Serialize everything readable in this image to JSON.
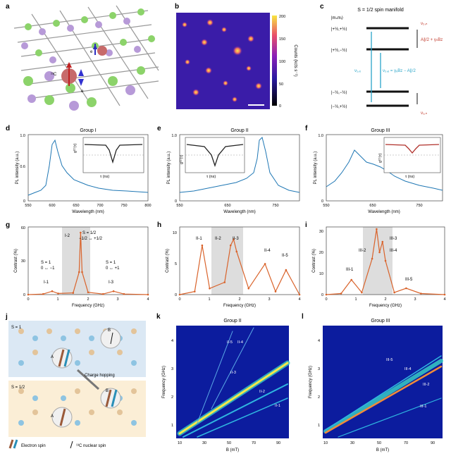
{
  "panels": {
    "a": {
      "letter": "a",
      "labels": {
        "e_top": "e",
        "c13": "¹³C",
        "e_bottom": "e"
      }
    },
    "b": {
      "letter": "b",
      "colorbar": {
        "label": "Counts (kcts s⁻¹)",
        "ticks": [
          "200",
          "150",
          "100",
          "50",
          "0"
        ]
      }
    },
    "c": {
      "letter": "c",
      "title": "S = 1/2 spin manifold",
      "basis": "|mₛmᵢ⟩",
      "states": [
        "|+½,+½⟩",
        "|+½,−½⟩",
        "|−½,−½⟩",
        "|−½,+½⟩"
      ],
      "right_labels": [
        "ν₂,ₙ",
        "ν₁,ₙ"
      ],
      "zeeman_n": "A∥/2 + γₙBz",
      "zeeman_e": "ν₁,ₑ",
      "center": "ν₂,ₑ = γₑBz − A∥/2"
    },
    "d": {
      "letter": "d",
      "title": "Group I",
      "xlabel": "Wavelength (nm)",
      "ylabel": "PL intensity (a.u.)",
      "xticks": [
        "550",
        "600",
        "650",
        "700",
        "750",
        "800"
      ],
      "yticks": [
        "0",
        "0.2",
        "0.4",
        "0.6",
        "0.8",
        "1.0"
      ],
      "inset": {
        "ylabel": "g⁽²⁾(τ)",
        "xlabel": "τ (ns)",
        "xticks": [
          "−20",
          "0",
          "20"
        ],
        "yticks": [
          "0",
          "0.5",
          "1.0"
        ]
      }
    },
    "e": {
      "letter": "e",
      "title": "Group II",
      "xlabel": "Wavelength (nm)",
      "ylabel": "PL intensity (a.u.)",
      "xticks": [
        "550",
        "600",
        "650",
        "700",
        "750",
        "800"
      ],
      "yticks": [
        "0",
        "0.2",
        "0.4",
        "0.6",
        "0.8",
        "1.0"
      ],
      "inset": {
        "ylabel": "g⁽²⁾(τ)",
        "xlabel": "τ (ns)",
        "xticks": [
          "−20",
          "0",
          "20"
        ],
        "yticks": [
          "0",
          "0.5",
          "1.0"
        ]
      }
    },
    "f": {
      "letter": "f",
      "title": "Group III",
      "xlabel": "Wavelength (nm)",
      "ylabel": "PL intensity (a.u.)",
      "xticks": [
        "550",
        "600",
        "650",
        "700",
        "750",
        "800"
      ],
      "yticks": [
        "0",
        "0.2",
        "0.4",
        "0.6",
        "0.8",
        "1.0"
      ],
      "inset": {
        "ylabel": "g⁽²⁾(τ)",
        "xlabel": "τ (ns)",
        "xticks": [
          "−20",
          "0",
          "20"
        ],
        "yticks": [
          "0",
          "0.5",
          "1.0"
        ]
      }
    },
    "g": {
      "letter": "g",
      "xlabel": "Frequency (GHz)",
      "ylabel": "Contrast (%)",
      "xticks": [
        "0",
        "1",
        "2",
        "3",
        "4"
      ],
      "yticks": [
        "0",
        "10",
        "20",
        "30",
        "40",
        "50",
        "60"
      ],
      "ann": {
        "s1a": "S = 1",
        "s1b": "0 ↔ −1",
        "i1": "I-1",
        "i2": "I-2",
        "s12a": "S = 1/2",
        "s12b": "−1/2 ↔ +1/2",
        "s1c": "S = 1",
        "s1d": "0 ↔ +1",
        "i3": "I-3"
      }
    },
    "h": {
      "letter": "h",
      "xlabel": "Frequency (GHz)",
      "ylabel": "Contrast (%)",
      "xticks": [
        "0",
        "1",
        "2",
        "3",
        "4"
      ],
      "yticks": [
        "0",
        "5",
        "10"
      ],
      "ann": [
        "II-1",
        "II-2",
        "II-3",
        "II-4",
        "II-5"
      ]
    },
    "i": {
      "letter": "i",
      "xlabel": "Frequency (GHz)",
      "ylabel": "Contrast (%)",
      "xticks": [
        "0",
        "1",
        "2",
        "3",
        "4"
      ],
      "yticks": [
        "0",
        "10",
        "20",
        "30"
      ],
      "ann": [
        "III-1",
        "III-2",
        "III-3",
        "III-4",
        "III-5"
      ]
    },
    "j": {
      "letter": "j",
      "s1": "S = 1",
      "s12": "S = 1/2",
      "A": "A",
      "B": "B",
      "hop": "Charge hopping",
      "legend_e": "Electron spin",
      "legend_n": "¹³C nuclear spin"
    },
    "k": {
      "letter": "k",
      "title": "Group II",
      "xlabel": "B (mT)",
      "ylabel": "Frequency (GHz)",
      "xticks": [
        "10",
        "30",
        "50",
        "70",
        "90"
      ],
      "yticks": [
        "1",
        "2",
        "3",
        "4"
      ],
      "ann": [
        "II-5",
        "II-4",
        "II-3",
        "II-2",
        "II-1"
      ]
    },
    "l": {
      "letter": "l",
      "title": "Group III",
      "xlabel": "B (mT)",
      "ylabel": "Frequency (GHz)",
      "xticks": [
        "10",
        "30",
        "50",
        "70",
        "90"
      ],
      "yticks": [
        "1",
        "2",
        "3",
        "4"
      ],
      "ann": [
        "III-5",
        "III-4",
        "III-2",
        "III-1"
      ]
    }
  },
  "chart_data": [
    {
      "type": "line",
      "panel": "g",
      "x": [
        0,
        0.5,
        0.8,
        1.0,
        1.5,
        1.7,
        1.75,
        1.8,
        2.0,
        2.5,
        2.85,
        3.2,
        4.0
      ],
      "values": [
        0,
        0.5,
        3,
        1,
        1.5,
        20,
        55,
        20,
        2,
        0.5,
        3,
        0.5,
        0
      ],
      "xlim": [
        0,
        4
      ],
      "ylim": [
        0,
        60
      ]
    },
    {
      "type": "line",
      "panel": "h",
      "x": [
        0,
        0.5,
        0.75,
        1.0,
        1.5,
        1.7,
        1.8,
        1.9,
        2.3,
        2.85,
        3.2,
        3.55,
        4.0
      ],
      "values": [
        0,
        0.5,
        8,
        1,
        2,
        8,
        9,
        7,
        1,
        5,
        0.5,
        4,
        0
      ],
      "xlim": [
        0,
        4
      ],
      "ylim": [
        0,
        11
      ]
    },
    {
      "type": "line",
      "panel": "i",
      "x": [
        0,
        0.5,
        0.85,
        1.2,
        1.55,
        1.7,
        1.8,
        1.9,
        2.0,
        2.3,
        2.7,
        3.2,
        4.0
      ],
      "values": [
        0,
        0.5,
        7,
        1,
        17,
        31,
        20,
        25,
        16,
        1,
        3,
        0.5,
        0
      ],
      "xlim": [
        0,
        4
      ],
      "ylim": [
        0,
        32
      ]
    }
  ]
}
